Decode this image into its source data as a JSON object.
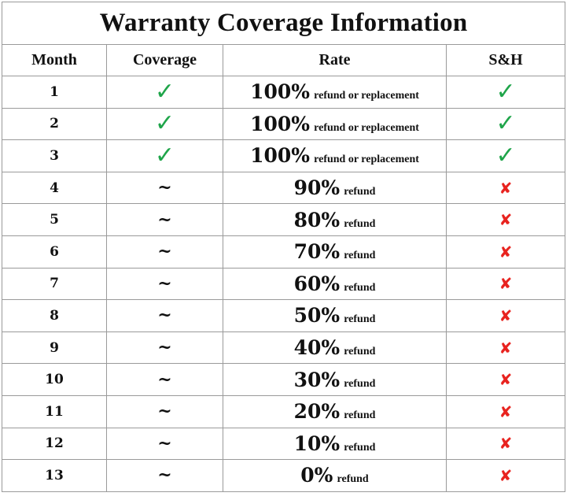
{
  "title": "Warranty Coverage Information",
  "headers": [
    "Month",
    "Coverage",
    "Rate",
    "S&H"
  ],
  "colors": {
    "check": "#1fa54a",
    "cross": "#e8231f"
  },
  "rows": [
    {
      "month": "1",
      "coverage": "check-icon",
      "rate": "100%",
      "desc": "refund or replacement",
      "sh": "check-icon"
    },
    {
      "month": "2",
      "coverage": "check-icon",
      "rate": "100%",
      "desc": "refund or replacement",
      "sh": "check-icon"
    },
    {
      "month": "3",
      "coverage": "check-icon",
      "rate": "100%",
      "desc": "refund or replacement",
      "sh": "check-icon"
    },
    {
      "month": "4",
      "coverage": "~",
      "rate": "90%",
      "desc": "refund",
      "sh": "cross-icon"
    },
    {
      "month": "5",
      "coverage": "~",
      "rate": "80%",
      "desc": "refund",
      "sh": "cross-icon"
    },
    {
      "month": "6",
      "coverage": "~",
      "rate": "70%",
      "desc": "refund",
      "sh": "cross-icon"
    },
    {
      "month": "7",
      "coverage": "~",
      "rate": "60%",
      "desc": "refund",
      "sh": "cross-icon"
    },
    {
      "month": "8",
      "coverage": "~",
      "rate": "50%",
      "desc": "refund",
      "sh": "cross-icon"
    },
    {
      "month": "9",
      "coverage": "~",
      "rate": "40%",
      "desc": "refund",
      "sh": "cross-icon"
    },
    {
      "month": "10",
      "coverage": "~",
      "rate": "30%",
      "desc": "refund",
      "sh": "cross-icon"
    },
    {
      "month": "11",
      "coverage": "~",
      "rate": "20%",
      "desc": "refund",
      "sh": "cross-icon"
    },
    {
      "month": "12",
      "coverage": "~",
      "rate": "10%",
      "desc": "refund",
      "sh": "cross-icon"
    },
    {
      "month": "13",
      "coverage": "~",
      "rate": "0%",
      "desc": "refund",
      "sh": "cross-icon"
    }
  ]
}
